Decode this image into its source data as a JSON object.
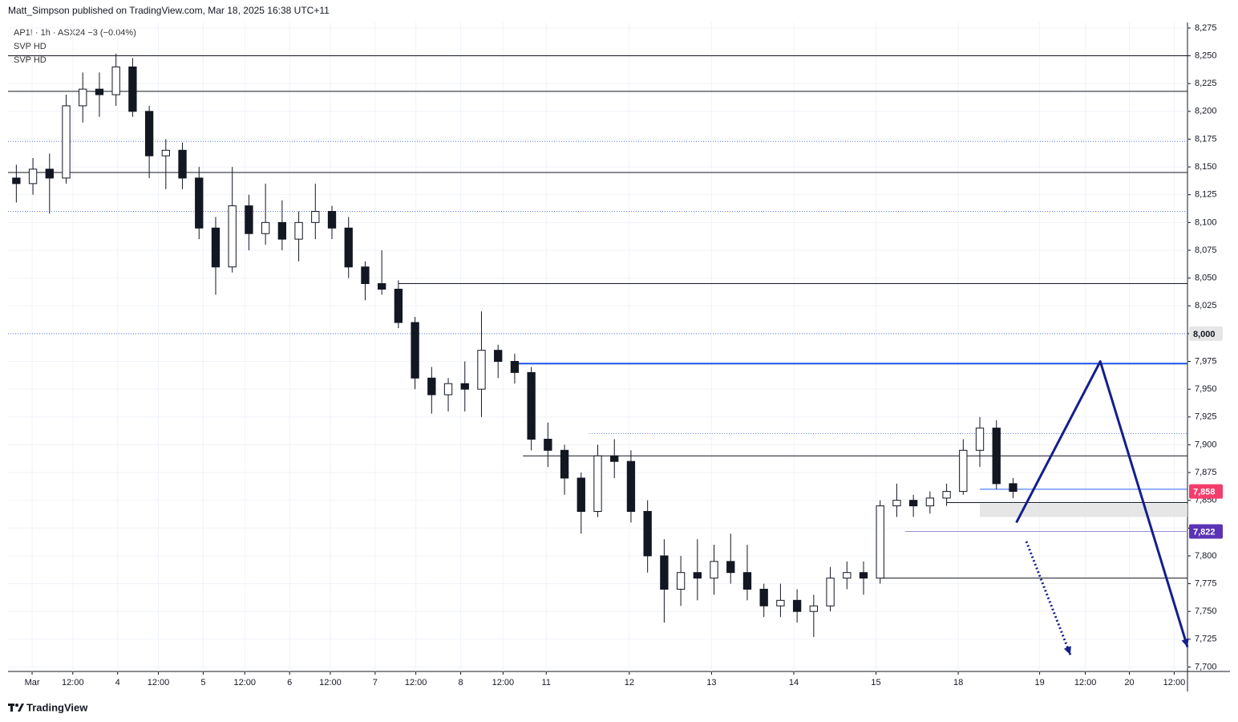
{
  "header": {
    "publisher": "Matt_Simpson published on TradingView.com, Mar 18, 2025 16:38 UTC+11"
  },
  "footer": {
    "brand": "TradingView"
  },
  "chart_data": {
    "type": "candlestick",
    "title": "AP1! · 1h · ASX24  −3 (−0.04%)",
    "indicators": [
      "SVP HD",
      "SVP HD"
    ],
    "x": [
      1,
      3,
      5,
      7,
      9,
      11,
      13,
      15,
      17,
      19,
      21,
      23,
      25,
      27,
      29,
      31,
      33,
      35,
      37,
      39,
      41,
      43,
      45,
      47,
      49,
      51,
      53,
      55,
      57,
      59,
      61,
      63,
      65,
      67,
      69,
      71,
      73,
      75,
      77,
      79,
      81,
      83,
      85,
      87,
      89,
      91,
      93,
      95,
      97,
      99,
      101,
      103,
      105,
      107,
      109,
      111,
      113,
      115,
      117,
      119,
      121
    ],
    "open": [
      8140,
      8135,
      8148,
      8140,
      8205,
      8220,
      8215,
      8240,
      8200,
      8160,
      8165,
      8140,
      8095,
      8060,
      8115,
      8090,
      8100,
      8085,
      8100,
      8110,
      8095,
      8060,
      8045,
      8040,
      8010,
      7960,
      7945,
      7955,
      7950,
      7985,
      7975,
      7965,
      7905,
      7895,
      7870,
      7840,
      7890,
      7885,
      7840,
      7800,
      7770,
      7785,
      7780,
      7795,
      7785,
      7770,
      7755,
      7760,
      7750,
      7755,
      7780,
      7785,
      7780,
      7845,
      7850,
      7845,
      7852,
      7858,
      7895,
      7915,
      7865
    ],
    "high": [
      8152,
      8158,
      8162,
      8215,
      8235,
      8235,
      8252,
      8248,
      8205,
      8175,
      8172,
      8150,
      8105,
      8150,
      8125,
      8135,
      8120,
      8110,
      8135,
      8115,
      8105,
      8065,
      8075,
      8048,
      8015,
      7970,
      7960,
      7975,
      8020,
      7990,
      7982,
      7970,
      7920,
      7900,
      7875,
      7900,
      7905,
      7895,
      7850,
      7815,
      7800,
      7815,
      7810,
      7820,
      7810,
      7775,
      7775,
      7770,
      7765,
      7790,
      7795,
      7795,
      7850,
      7865,
      7855,
      7858,
      7865,
      7905,
      7925,
      7922,
      7870
    ],
    "low": [
      8118,
      8125,
      8108,
      8135,
      8190,
      8195,
      8205,
      8195,
      8140,
      8130,
      8130,
      8085,
      8035,
      8055,
      8075,
      8080,
      8075,
      8065,
      8085,
      8085,
      8050,
      8030,
      8035,
      8005,
      7950,
      7928,
      7930,
      7930,
      7925,
      7960,
      7955,
      7895,
      7880,
      7855,
      7820,
      7835,
      7870,
      7830,
      7785,
      7740,
      7755,
      7760,
      7765,
      7775,
      7760,
      7745,
      7745,
      7740,
      7727,
      7750,
      7770,
      7765,
      7775,
      7835,
      7835,
      7838,
      7845,
      7855,
      7880,
      7860,
      7852
    ],
    "close": [
      8135,
      8148,
      8140,
      8205,
      8220,
      8215,
      8240,
      8200,
      8160,
      8165,
      8140,
      8095,
      8060,
      8115,
      8090,
      8100,
      8085,
      8100,
      8110,
      8095,
      8060,
      8045,
      8040,
      8010,
      7960,
      7945,
      7955,
      7950,
      7985,
      7975,
      7965,
      7905,
      7895,
      7870,
      7840,
      7890,
      7885,
      7840,
      7800,
      7770,
      7785,
      7780,
      7795,
      7785,
      7770,
      7755,
      7760,
      7750,
      7755,
      7780,
      7785,
      7780,
      7845,
      7850,
      7845,
      7852,
      7858,
      7895,
      7915,
      7865,
      7858
    ],
    "up_color": "#ffffff",
    "down_color": "#131722",
    "outline_color": "#131722",
    "xlim": [
      0,
      142
    ],
    "xticks": [
      {
        "value": 2.9,
        "label": "Mar"
      },
      {
        "value": 7.8,
        "label": "12:00"
      },
      {
        "value": 13.2,
        "label": "4"
      },
      {
        "value": 18.1,
        "label": "12:00"
      },
      {
        "value": 23.5,
        "label": "5"
      },
      {
        "value": 28.5,
        "label": "12:00"
      },
      {
        "value": 33.9,
        "label": "6"
      },
      {
        "value": 38.8,
        "label": "12:00"
      },
      {
        "value": 44.2,
        "label": "7"
      },
      {
        "value": 49.1,
        "label": "12:00"
      },
      {
        "value": 54.5,
        "label": "8"
      },
      {
        "value": 59.6,
        "label": "12:00"
      },
      {
        "value": 64.8,
        "label": "11"
      },
      {
        "value": 74.8,
        "label": "12"
      },
      {
        "value": 84.7,
        "label": "13"
      },
      {
        "value": 94.6,
        "label": "14"
      },
      {
        "value": 104.5,
        "label": "15"
      },
      {
        "value": 114.4,
        "label": "18"
      },
      {
        "value": 124.2,
        "label": "19"
      },
      {
        "value": 129.7,
        "label": "12:00"
      },
      {
        "value": 135,
        "label": "20"
      },
      {
        "value": 140.4,
        "label": "12:00"
      }
    ],
    "ylim": [
      7696,
      8280
    ],
    "yticks": [
      {
        "value": 7700,
        "label": "7,700"
      },
      {
        "value": 7725,
        "label": "7,725"
      },
      {
        "value": 7750,
        "label": "7,750"
      },
      {
        "value": 7775,
        "label": "7,775"
      },
      {
        "value": 7800,
        "label": "7,800"
      },
      {
        "value": 7825,
        "label": "7,825"
      },
      {
        "value": 7850,
        "label": "7,850"
      },
      {
        "value": 7875,
        "label": "7,875"
      },
      {
        "value": 7900,
        "label": "7,900"
      },
      {
        "value": 7925,
        "label": "7,925"
      },
      {
        "value": 7950,
        "label": "7,950"
      },
      {
        "value": 7975,
        "label": "7,975"
      },
      {
        "value": 8000,
        "label": "8,000"
      },
      {
        "value": 8025,
        "label": "8,025"
      },
      {
        "value": 8050,
        "label": "8,050"
      },
      {
        "value": 8075,
        "label": "8,075"
      },
      {
        "value": 8100,
        "label": "8,100"
      },
      {
        "value": 8125,
        "label": "8,125"
      },
      {
        "value": 8150,
        "label": "8,150"
      },
      {
        "value": 8175,
        "label": "8,175"
      },
      {
        "value": 8200,
        "label": "8,200"
      },
      {
        "value": 8225,
        "label": "8,225"
      },
      {
        "value": 8250,
        "label": "8,250"
      },
      {
        "value": 8275,
        "label": "8,275"
      }
    ],
    "grid": true,
    "levels": [
      {
        "value": 8250,
        "from": 0,
        "style": "solid",
        "color": "#131722"
      },
      {
        "value": 8218,
        "from": 0,
        "style": "solid",
        "color": "#131722"
      },
      {
        "value": 8173,
        "from": 0,
        "style": "dotted",
        "color": "#5b7bd5"
      },
      {
        "value": 8145,
        "from": 0,
        "style": "solid",
        "color": "#131722"
      },
      {
        "value": 8110,
        "from": 0,
        "style": "dotted",
        "color": "#5b7bd5"
      },
      {
        "value": 8045,
        "from": 47,
        "style": "solid",
        "color": "#131722"
      },
      {
        "value": 8000,
        "from": 0,
        "style": "dotted",
        "color": "#5b7bd5"
      },
      {
        "value": 7973,
        "from": 61,
        "style": "solid",
        "color": "#1e53e5"
      },
      {
        "value": 7910,
        "from": 70,
        "style": "dotted",
        "color": "#5b7bd5"
      },
      {
        "value": 7890,
        "from": 62,
        "style": "solid",
        "color": "#131722"
      },
      {
        "value": 7860,
        "from": 117,
        "style": "solid",
        "color": "#2962ff"
      },
      {
        "value": 7848,
        "from": 113,
        "style": "solid",
        "color": "#131722"
      },
      {
        "value": 7822,
        "from": 108,
        "style": "solid",
        "color": "#9b8fd0"
      },
      {
        "value": 7780,
        "from": 105,
        "style": "solid",
        "color": "#131722"
      }
    ],
    "zones": [
      {
        "from": 117,
        "range": [
          7835,
          7847
        ],
        "color": "#e0e0e0"
      }
    ],
    "price_tags": [
      {
        "value": 8000,
        "label": "8,000",
        "color": "#e6e6e6",
        "text_color": "#131722"
      },
      {
        "value": 7858,
        "label": "7,858",
        "color": "#f23d6d",
        "text_color": "#ffffff"
      },
      {
        "value": 7822,
        "label": "7,822",
        "color": "#5b34b5",
        "text_color": "#ffffff"
      }
    ],
    "drawings": [
      {
        "style": "solid",
        "color": "#131f8c",
        "points": [
          [
            121.4,
            7830
          ],
          [
            131.5,
            7975
          ],
          [
            142,
            7718
          ]
        ]
      },
      {
        "style": "dotted",
        "color": "#131f8c",
        "points": [
          [
            122.6,
            7813
          ],
          [
            127.9,
            7711
          ]
        ]
      }
    ]
  }
}
